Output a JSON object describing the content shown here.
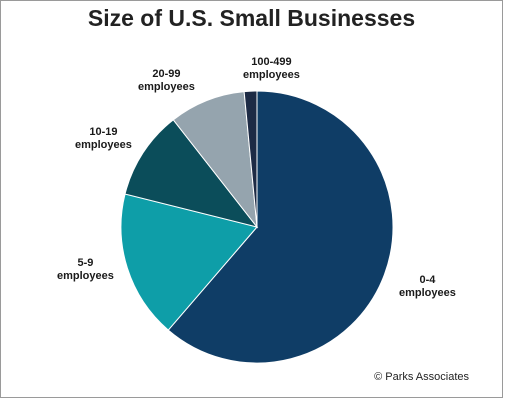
{
  "chart_data": {
    "type": "pie",
    "title": "Size of U.S. Small Businesses",
    "slices": [
      {
        "label_line1": "0-4",
        "label_line2": "employees",
        "value": 61.0,
        "color": "#0f3d66"
      },
      {
        "label_line1": "5-9",
        "label_line2": "employees",
        "value": 17.5,
        "color": "#0e9ea8"
      },
      {
        "label_line1": "10-19",
        "label_line2": "employees",
        "value": 10.5,
        "color": "#0b4d5a"
      },
      {
        "label_line1": "20-99",
        "label_line2": "employees",
        "value": 9.0,
        "color": "#95a4ae"
      },
      {
        "label_line1": "100-499",
        "label_line2": "employees",
        "value": 1.5,
        "color": "#1d2b45"
      }
    ],
    "legend": "none",
    "source": "© Parks Associates"
  }
}
